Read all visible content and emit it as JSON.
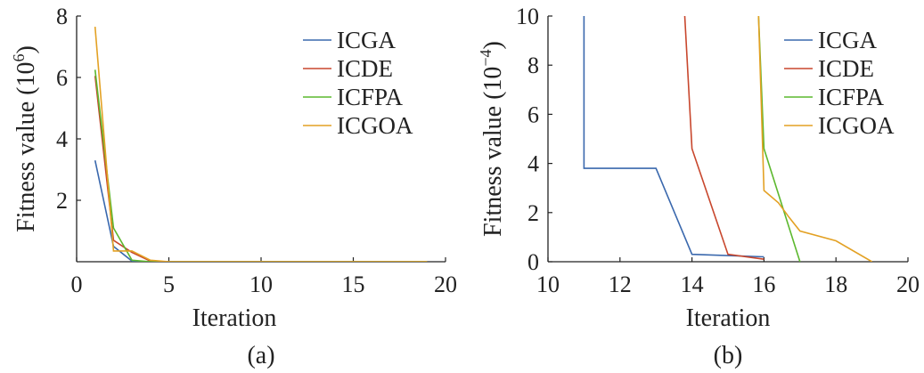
{
  "chart_data": [
    {
      "type": "line",
      "caption": "(a)",
      "xlabel": "Iteration",
      "ylabel_main": "Fitness value (10",
      "ylabel_exp": "6",
      "ylabel_close": ")",
      "xlim": [
        0,
        20
      ],
      "ylim": [
        0,
        8
      ],
      "xticks": [
        0,
        5,
        10,
        15,
        20
      ],
      "yticks": [
        2,
        4,
        6,
        8
      ],
      "grid": false,
      "legend_position": "top-right",
      "series": [
        {
          "name": "ICGA",
          "color": "#3a68ad",
          "x": [
            1,
            2,
            3,
            4,
            5,
            19
          ],
          "y": [
            3.3,
            0.5,
            0.02,
            0,
            0,
            0
          ]
        },
        {
          "name": "ICDE",
          "color": "#c8472d",
          "x": [
            1,
            2,
            3,
            4,
            5,
            19
          ],
          "y": [
            6.05,
            0.7,
            0.3,
            0.02,
            0,
            0
          ]
        },
        {
          "name": "ICFPA",
          "color": "#5cb82e",
          "x": [
            1,
            2,
            3,
            4,
            5,
            19
          ],
          "y": [
            6.25,
            1.1,
            0.05,
            0,
            0,
            0
          ]
        },
        {
          "name": "ICGOA",
          "color": "#e3a124",
          "x": [
            1,
            2,
            3,
            4,
            5,
            19
          ],
          "y": [
            7.65,
            0.35,
            0.35,
            0.05,
            0,
            0
          ]
        }
      ]
    },
    {
      "type": "line",
      "caption": "(b)",
      "xlabel": "Iteration",
      "ylabel_main": "Fitness value (10",
      "ylabel_exp": "−4",
      "ylabel_close": ")",
      "xlim": [
        10,
        20
      ],
      "ylim": [
        0,
        10
      ],
      "xticks": [
        10,
        12,
        14,
        16,
        18,
        20
      ],
      "yticks": [
        0,
        2,
        4,
        6,
        8,
        10
      ],
      "grid": false,
      "legend_position": "top-right",
      "series": [
        {
          "name": "ICGA",
          "color": "#3a68ad",
          "x": [
            11,
            11,
            13,
            14,
            16
          ],
          "y": [
            10,
            3.8,
            3.8,
            0.3,
            0.2
          ]
        },
        {
          "name": "ICDE",
          "color": "#c8472d",
          "x": [
            13.8,
            14,
            15,
            16
          ],
          "y": [
            10,
            4.6,
            0.3,
            0.1
          ]
        },
        {
          "name": "ICFPA",
          "color": "#5cb82e",
          "x": [
            15.85,
            16,
            17
          ],
          "y": [
            10,
            4.6,
            0
          ]
        },
        {
          "name": "ICGOA",
          "color": "#e3a124",
          "x": [
            15.85,
            16,
            16.4,
            16.7,
            17,
            18,
            19
          ],
          "y": [
            10,
            2.9,
            2.4,
            1.8,
            1.25,
            0.85,
            0
          ]
        }
      ]
    }
  ]
}
